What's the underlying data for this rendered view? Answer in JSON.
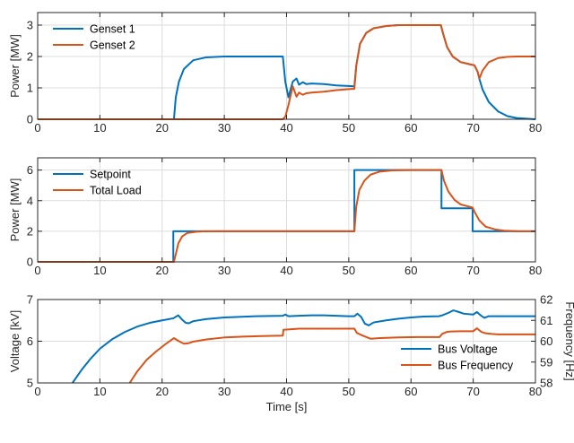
{
  "colors": {
    "blue": "#0072bd",
    "orange": "#d95319",
    "grid": "#dcdcdc",
    "axis": "#262626"
  },
  "chart_data": [
    {
      "type": "line",
      "ylabel": "Power [MW]",
      "xlim": [
        0,
        80
      ],
      "ylim": [
        0,
        3.4
      ],
      "xticks": [
        "0",
        "10",
        "20",
        "30",
        "40",
        "50",
        "60",
        "70",
        "80"
      ],
      "yticks": [
        "0",
        "1",
        "2",
        "3"
      ],
      "grid": true,
      "legend_position": "top-left",
      "series": [
        {
          "name": "Genset 1",
          "color": "#0072bd",
          "x": [
            0,
            21.9,
            22.2,
            22.7,
            23.5,
            25,
            27,
            30,
            39.4,
            39.8,
            40.3,
            41,
            41.6,
            42,
            42.6,
            43.2,
            44,
            46,
            48,
            50.9,
            51.2,
            51.8,
            52.8,
            54,
            56,
            58,
            60,
            62,
            64.8,
            65.2,
            65.8,
            66.7,
            68,
            69.5,
            70.2,
            70.7,
            71,
            71.5,
            72.5,
            74,
            75.5,
            77,
            80
          ],
          "y": [
            0,
            0,
            0.7,
            1.2,
            1.6,
            1.88,
            1.97,
            2.0,
            2.0,
            1.2,
            0.7,
            1.2,
            1.3,
            1.1,
            1.18,
            1.12,
            1.14,
            1.12,
            1.08,
            1.05,
            1.7,
            2.4,
            2.75,
            2.9,
            2.97,
            3.0,
            3.0,
            3.0,
            3.0,
            2.7,
            2.3,
            2.0,
            1.82,
            1.75,
            1.72,
            1.52,
            1.28,
            0.95,
            0.55,
            0.25,
            0.1,
            0.04,
            0.0
          ]
        },
        {
          "name": "Genset 2",
          "color": "#d95319",
          "x": [
            0,
            39.4,
            39.8,
            40.3,
            41,
            41.6,
            42,
            42.6,
            43.2,
            44,
            46,
            48,
            50.9,
            51.2,
            51.8,
            52.8,
            54,
            56,
            58,
            60,
            62,
            64.8,
            65.2,
            65.8,
            66.7,
            68,
            69.5,
            70.2,
            70.7,
            71,
            71.5,
            72.5,
            74,
            75.5,
            77,
            80
          ],
          "y": [
            0,
            0,
            0.08,
            0.45,
            1.05,
            0.72,
            0.85,
            0.78,
            0.83,
            0.85,
            0.88,
            0.93,
            0.97,
            1.7,
            2.4,
            2.75,
            2.9,
            2.97,
            3.0,
            3.0,
            3.0,
            3.0,
            2.7,
            2.3,
            2.0,
            1.82,
            1.75,
            1.72,
            1.52,
            1.3,
            1.55,
            1.82,
            1.95,
            1.99,
            2.0,
            2.0
          ]
        }
      ]
    },
    {
      "type": "line",
      "ylabel": "Power [MW]",
      "xlim": [
        0,
        80
      ],
      "ylim": [
        0,
        6.8
      ],
      "xticks": [
        "0",
        "10",
        "20",
        "30",
        "40",
        "50",
        "60",
        "70",
        "80"
      ],
      "yticks": [
        "0",
        "2",
        "4",
        "6"
      ],
      "grid": true,
      "legend_position": "top-left",
      "series": [
        {
          "name": "Setpoint",
          "color": "#0072bd",
          "x": [
            0,
            21.8,
            21.8,
            50.9,
            50.9,
            64.9,
            64.9,
            69.9,
            69.9,
            80
          ],
          "y": [
            0,
            0,
            2,
            2,
            6,
            6,
            3.5,
            3.5,
            2,
            2
          ]
        },
        {
          "name": "Total Load",
          "color": "#d95319",
          "x": [
            0,
            21.9,
            22.2,
            22.6,
            23.2,
            24,
            25.5,
            27,
            30,
            50.9,
            51.2,
            51.7,
            52.5,
            53.5,
            55,
            57,
            60,
            64.9,
            65.3,
            66,
            67,
            68,
            69.9,
            70.3,
            71,
            72,
            73.5,
            75,
            77,
            80
          ],
          "y": [
            0,
            0,
            0.5,
            1.2,
            1.65,
            1.88,
            1.97,
            2.0,
            2.0,
            2.0,
            3.6,
            4.7,
            5.3,
            5.7,
            5.9,
            5.98,
            6.0,
            6.0,
            5.3,
            4.6,
            4.05,
            3.75,
            3.55,
            3.2,
            2.7,
            2.3,
            2.12,
            2.04,
            2.01,
            2.0
          ]
        }
      ]
    },
    {
      "type": "line",
      "ylabel": "Voltage [kV]",
      "y2label": "Frequency [Hz]",
      "xlabel": "Time [s]",
      "xlim": [
        0,
        80
      ],
      "ylim": [
        5,
        7
      ],
      "y2lim": [
        58,
        62
      ],
      "xticks": [
        "0",
        "10",
        "20",
        "30",
        "40",
        "50",
        "60",
        "70",
        "80"
      ],
      "yticks": [
        "5",
        "6",
        "7"
      ],
      "y2ticks": [
        "58",
        "59",
        "60",
        "61",
        "62"
      ],
      "grid": true,
      "legend_position": "bottom-right",
      "series": [
        {
          "name": "Bus Voltage",
          "color": "#0072bd",
          "axis": "left",
          "x": [
            5.6,
            7,
            8.5,
            10,
            12,
            14,
            16,
            18,
            20,
            21.8,
            22.6,
            23.2,
            23.8,
            24.3,
            25,
            27,
            30,
            35,
            39.4,
            39.8,
            40.3,
            42,
            44,
            46,
            48,
            50,
            50.9,
            51.4,
            52,
            52.6,
            53.2,
            54,
            56,
            58,
            60,
            62,
            64.5,
            65,
            66,
            66.8,
            67.5,
            68.5,
            70,
            70.6,
            71.2,
            71.8,
            72.5,
            74,
            80
          ],
          "y": [
            5.0,
            5.3,
            5.58,
            5.82,
            6.05,
            6.22,
            6.35,
            6.44,
            6.5,
            6.55,
            6.62,
            6.52,
            6.44,
            6.43,
            6.48,
            6.53,
            6.57,
            6.6,
            6.61,
            6.64,
            6.6,
            6.61,
            6.62,
            6.62,
            6.61,
            6.6,
            6.6,
            6.66,
            6.58,
            6.42,
            6.38,
            6.45,
            6.5,
            6.54,
            6.57,
            6.59,
            6.6,
            6.62,
            6.68,
            6.74,
            6.71,
            6.66,
            6.64,
            6.7,
            6.62,
            6.56,
            6.6,
            6.6,
            6.6
          ]
        },
        {
          "name": "Bus Frequency",
          "color": "#d95319",
          "axis": "right",
          "x": [
            14.8,
            16,
            17.5,
            19,
            20.5,
            21.9,
            22.7,
            23.5,
            24.2,
            25,
            27,
            30,
            33,
            36,
            39.4,
            39.5,
            42,
            45,
            48,
            50.9,
            51.3,
            52,
            52.8,
            53.5,
            55,
            58,
            61,
            64.6,
            65,
            65.8,
            66.5,
            68,
            70,
            70.6,
            71.3,
            72,
            73,
            74,
            80
          ],
          "y": [
            58.0,
            58.55,
            59.1,
            59.5,
            59.85,
            60.15,
            60.0,
            59.88,
            59.9,
            59.98,
            60.08,
            60.18,
            60.22,
            60.25,
            60.27,
            60.55,
            60.6,
            60.6,
            60.6,
            60.6,
            60.4,
            60.3,
            60.2,
            60.12,
            60.15,
            60.18,
            60.2,
            60.2,
            60.35,
            60.45,
            60.47,
            60.48,
            60.48,
            60.62,
            60.45,
            60.38,
            60.35,
            60.33,
            60.33
          ]
        }
      ]
    }
  ]
}
